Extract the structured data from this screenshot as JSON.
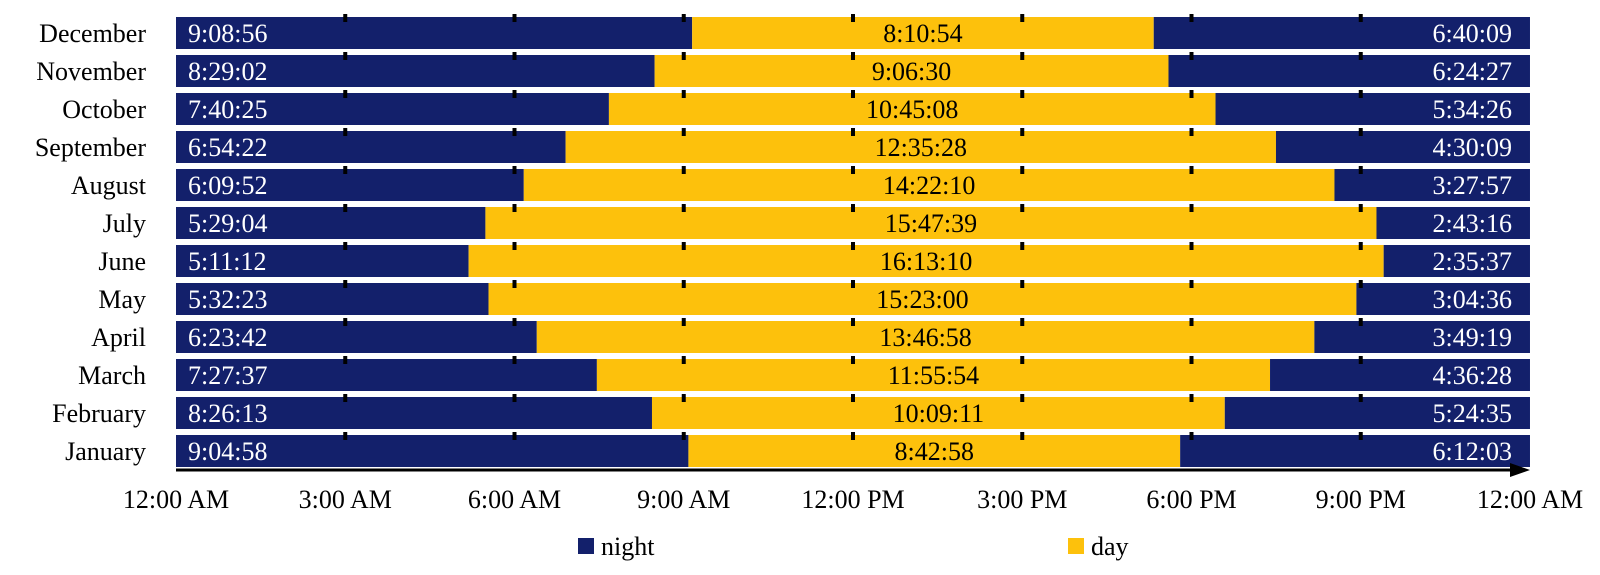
{
  "chart_data": {
    "type": "bar",
    "orientation": "horizontal",
    "stacked": true,
    "x_unit": "hours",
    "xlim": [
      0,
      24
    ],
    "x_ticks": [
      0,
      3,
      6,
      9,
      12,
      15,
      18,
      21,
      24
    ],
    "x_tick_labels": [
      "12:00 AM",
      "3:00 AM",
      "6:00 AM",
      "9:00 AM",
      "12:00 PM",
      "3:00 PM",
      "6:00 PM",
      "9:00 PM",
      "12:00 AM"
    ],
    "categories": [
      "December",
      "November",
      "October",
      "September",
      "August",
      "July",
      "June",
      "May",
      "April",
      "March",
      "February",
      "January"
    ],
    "series": [
      {
        "name": "night",
        "color": "#13206b",
        "segment": "morning",
        "labels": [
          "9:08:56",
          "8:29:02",
          "7:40:25",
          "6:54:22",
          "6:09:52",
          "5:29:04",
          "5:11:12",
          "5:32:23",
          "6:23:42",
          "7:27:37",
          "8:26:13",
          "9:04:58"
        ]
      },
      {
        "name": "day",
        "color": "#fdc10c",
        "segment": "daytime",
        "labels": [
          "8:10:54",
          "9:06:30",
          "10:45:08",
          "12:35:28",
          "14:22:10",
          "15:47:39",
          "16:13:10",
          "15:23:00",
          "13:46:58",
          "11:55:54",
          "10:09:11",
          "8:42:58"
        ]
      },
      {
        "name": "night",
        "color": "#13206b",
        "segment": "evening",
        "labels": [
          "6:40:09",
          "6:24:27",
          "5:34:26",
          "4:30:09",
          "3:27:57",
          "2:43:16",
          "2:35:37",
          "3:04:36",
          "3:49:19",
          "4:36:28",
          "5:24:35",
          "6:12:03"
        ]
      }
    ],
    "legend": [
      {
        "label": "night",
        "color": "#13206b"
      },
      {
        "label": "day",
        "color": "#fdc10c"
      }
    ],
    "legend_position": "bottom",
    "grid": false
  }
}
